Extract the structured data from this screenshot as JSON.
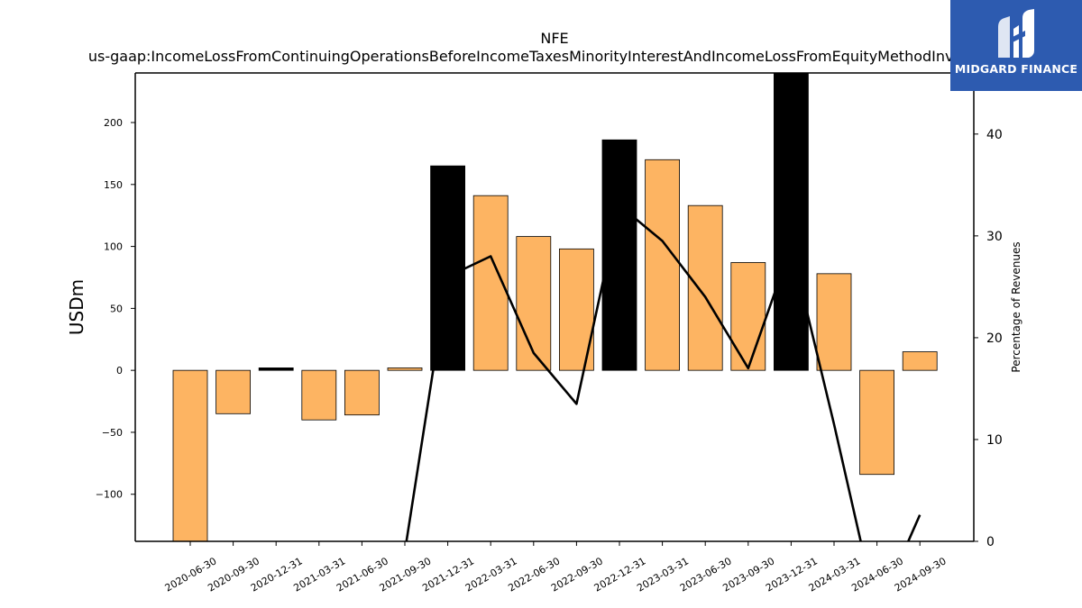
{
  "chart_data": {
    "type": "bar",
    "title": "NFE",
    "subtitle": "us-gaap:IncomeLossFromContinuingOperationsBeforeIncomeTaxesMinorityInterestAndIncomeLossFromEquityMethodInvestments",
    "ylabel": "USDm",
    "y2label": "Percentage of Revenues",
    "categories": [
      "2020-06-30",
      "2020-09-30",
      "2020-12-31",
      "2021-03-31",
      "2021-06-30",
      "2021-09-30",
      "2021-12-31",
      "2022-03-31",
      "2022-06-30",
      "2022-09-30",
      "2022-12-31",
      "2023-03-31",
      "2023-06-30",
      "2023-09-30",
      "2023-12-31",
      "2024-03-31",
      "2024-06-30",
      "2024-09-30"
    ],
    "series": [
      {
        "type": "bar",
        "axis": "left",
        "values": [
          -138,
          -35,
          2,
          -40,
          -36,
          2,
          165,
          141,
          108,
          98,
          186,
          170,
          133,
          87,
          241,
          78,
          -84,
          15
        ],
        "fiscal_year_end": [
          false,
          false,
          true,
          false,
          false,
          false,
          true,
          false,
          false,
          false,
          true,
          false,
          false,
          false,
          true,
          false,
          false,
          false
        ]
      },
      {
        "type": "line",
        "axis": "right",
        "values": [
          null,
          null,
          1.6,
          null,
          null,
          -1.0,
          26.0,
          28.0,
          18.5,
          13.5,
          33.0,
          29.5,
          24.0,
          17.0,
          29.0,
          11.5,
          -7.0,
          2.6
        ]
      }
    ],
    "ylim": [
      -138,
      240
    ],
    "y2lim": [
      0,
      46
    ],
    "yticks": [
      -100,
      -50,
      0,
      50,
      100,
      150,
      200
    ],
    "ytick_labels": [
      "−100",
      "−50",
      "0",
      "50",
      "100",
      "150",
      "200"
    ],
    "y2ticks": [
      0,
      10,
      20,
      30,
      40
    ],
    "grid": false,
    "colors": {
      "bar": "#fdb462",
      "bar_fiscal_year_end": "#000000",
      "line": "#000000"
    }
  },
  "logo": {
    "text": "MIDGARD FINANCE",
    "color": "#2d5bb0"
  }
}
